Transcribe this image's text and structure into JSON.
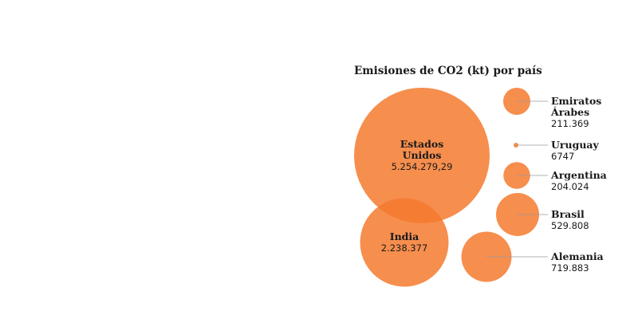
{
  "chart_data": {
    "type": "bubble",
    "title": "Emisiones de CO2 (kt) por país",
    "series": [
      {
        "name": "Estados Unidos",
        "name_lines": [
          "Estados",
          "Unidos"
        ],
        "value": 5254279.29,
        "value_label": "5.254.279,29",
        "label_position": "inside"
      },
      {
        "name": "India",
        "name_lines": [
          "India"
        ],
        "value": 2238377,
        "value_label": "2.238.377",
        "label_position": "inside"
      },
      {
        "name": "Emiratos Árabes",
        "name_lines": [
          "Emiratos",
          "Árabes"
        ],
        "value": 211369,
        "value_label": "211.369",
        "label_position": "right"
      },
      {
        "name": "Uruguay",
        "name_lines": [
          "Uruguay"
        ],
        "value": 6747,
        "value_label": "6747",
        "label_position": "right"
      },
      {
        "name": "Argentina",
        "name_lines": [
          "Argentina"
        ],
        "value": 204024,
        "value_label": "204.024",
        "label_position": "right"
      },
      {
        "name": "Brasil",
        "name_lines": [
          "Brasil"
        ],
        "value": 529808,
        "value_label": "529.808",
        "label_position": "right"
      },
      {
        "name": "Alemania",
        "name_lines": [
          "Alemania"
        ],
        "value": 719883,
        "value_label": "719.883",
        "label_position": "right"
      }
    ],
    "colors": {
      "bubble": "#f47a2f",
      "bubble_opacity": 0.85,
      "text": "#1a1a1a",
      "leader": "#9a9a9a"
    }
  }
}
